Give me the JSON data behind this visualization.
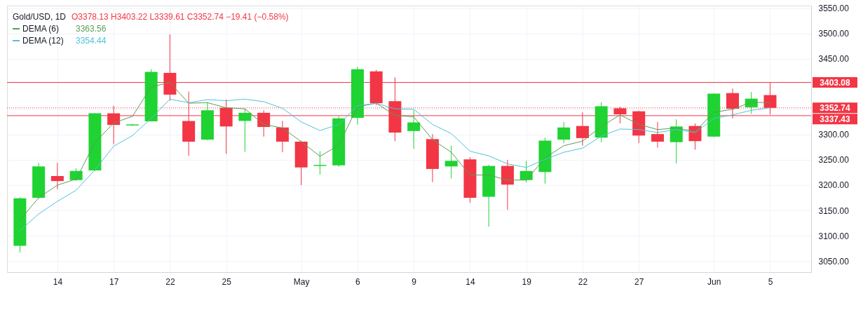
{
  "chart_data": {
    "type": "candlestick",
    "title": "Gold/USD, 1D",
    "subtitle": "O3378.13  H3403.22  L3339.61  C3352.74  −19.41 (−0.58%)",
    "categories": [
      null,
      null,
      "14",
      null,
      null,
      "17",
      null,
      null,
      "22",
      null,
      null,
      "25",
      null,
      null,
      null,
      "May",
      null,
      null,
      "6",
      null,
      null,
      "9",
      null,
      null,
      "14",
      null,
      null,
      "19",
      null,
      null,
      "22",
      null,
      null,
      "27",
      null,
      null,
      null,
      "Jun",
      null,
      null,
      "5"
    ],
    "ohlc": [
      [
        3080,
        3176,
        3067,
        3174
      ],
      [
        3175,
        3244,
        3173,
        3237
      ],
      [
        3218,
        3244,
        3192,
        3208
      ],
      [
        3210,
        3233,
        3208,
        3228
      ],
      [
        3229,
        3342,
        3228,
        3342
      ],
      [
        3342,
        3357,
        3281,
        3319
      ],
      [
        3318,
        3321,
        3317,
        3320
      ],
      [
        3326,
        3429,
        3326,
        3424
      ],
      [
        3422,
        3498,
        3367,
        3379
      ],
      [
        3327,
        3385,
        3258,
        3286
      ],
      [
        3290,
        3364,
        3289,
        3348
      ],
      [
        3353,
        3369,
        3262,
        3316
      ],
      [
        3327,
        3351,
        3266,
        3343
      ],
      [
        3343,
        3348,
        3296,
        3315
      ],
      [
        3314,
        3327,
        3265,
        3286
      ],
      [
        3286,
        3288,
        3200,
        3235
      ],
      [
        3238,
        3267,
        3221,
        3240
      ],
      [
        3239,
        3336,
        3236,
        3332
      ],
      [
        3333,
        3434,
        3320,
        3429
      ],
      [
        3425,
        3428,
        3358,
        3362
      ],
      [
        3366,
        3413,
        3287,
        3304
      ],
      [
        3307,
        3348,
        3272,
        3324
      ],
      [
        3291,
        3301,
        3206,
        3232
      ],
      [
        3237,
        3278,
        3213,
        3248
      ],
      [
        3251,
        3255,
        3165,
        3175
      ],
      [
        3177,
        3240,
        3118,
        3238
      ],
      [
        3238,
        3250,
        3151,
        3201
      ],
      [
        3210,
        3248,
        3205,
        3228
      ],
      [
        3226,
        3294,
        3203,
        3288
      ],
      [
        3290,
        3325,
        3283,
        3314
      ],
      [
        3317,
        3344,
        3278,
        3293
      ],
      [
        3294,
        3364,
        3285,
        3356
      ],
      [
        3352,
        3355,
        3322,
        3340
      ],
      [
        3346,
        3347,
        3283,
        3298
      ],
      [
        3301,
        3325,
        3274,
        3286
      ],
      [
        3285,
        3330,
        3243,
        3316
      ],
      [
        3317,
        3322,
        3270,
        3287
      ],
      [
        3296,
        3381,
        3295,
        3381
      ],
      [
        3382,
        3391,
        3332,
        3351
      ],
      [
        3354,
        3384,
        3341,
        3371
      ],
      [
        3378.13,
        3403.22,
        3339.61,
        3352.74
      ]
    ],
    "colors": [
      "#1ed332",
      "#1ed332",
      "#f23645",
      "#1ed332",
      "#1ed332",
      "#f23645",
      "#1ed332",
      "#1ed332",
      "#f23645",
      "#f23645",
      "#1ed332",
      "#f23645",
      "#1ed332",
      "#f23645",
      "#f23645",
      "#f23645",
      "#1ed332",
      "#1ed332",
      "#1ed332",
      "#f23645",
      "#f23645",
      "#1ed332",
      "#f23645",
      "#1ed332",
      "#f23645",
      "#1ed332",
      "#f23645",
      "#1ed332",
      "#1ed332",
      "#1ed332",
      "#f23645",
      "#1ed332",
      "#f23645",
      "#f23645",
      "#f23645",
      "#1ed332",
      "#f23645",
      "#1ed332",
      "#f23645",
      "#1ed332",
      "#f23645"
    ],
    "series": [
      {
        "name": "DEMA (6)",
        "type": "line",
        "color": "#5d9c59",
        "values": [
          3131,
          3175,
          3200,
          3212,
          3284,
          3323,
          3336,
          3394,
          3403,
          3362,
          3363,
          3353,
          3351,
          3320,
          3313,
          3286,
          3257,
          3279,
          3355,
          3362,
          3338,
          3335,
          3290,
          3265,
          3220,
          3220,
          3210,
          3210,
          3254,
          3278,
          3287,
          3316,
          3339,
          3320,
          3310,
          3313,
          3306,
          3344,
          3350,
          3364,
          3363
        ]
      },
      {
        "name": "DEMA (12)",
        "type": "line",
        "color": "#4fc3d9",
        "values": [
          3110,
          3143,
          3168,
          3190,
          3230,
          3277,
          3298,
          3332,
          3370,
          3363,
          3369,
          3367,
          3370,
          3365,
          3352,
          3325,
          3308,
          3320,
          3357,
          3362,
          3351,
          3350,
          3320,
          3302,
          3267,
          3258,
          3242,
          3235,
          3251,
          3265,
          3273,
          3297,
          3311,
          3310,
          3304,
          3310,
          3304,
          3332,
          3339,
          3348,
          3353
        ]
      }
    ],
    "annotations": [
      "3363.56",
      "3354.44"
    ],
    "ref_lines": [
      {
        "axis": "y",
        "value": 3403.08,
        "label": "3403.08",
        "color": "#f23645",
        "line_style": "solid"
      },
      {
        "axis": "y",
        "value": 3352.74,
        "label": "3352.74",
        "color": "#f23645",
        "line_style": "dotted"
      },
      {
        "axis": "y",
        "value": 3337.43,
        "label": "3337.43",
        "color": "#f23645",
        "line_style": "solid"
      }
    ],
    "ylim": [
      3028,
      3555
    ],
    "yticks": [
      {
        "value": 3050,
        "label": "3050.00"
      },
      {
        "value": 3100,
        "label": "3100.00"
      },
      {
        "value": 3150,
        "label": "3150.00"
      },
      {
        "value": 3200,
        "label": "3200.00"
      },
      {
        "value": 3250,
        "label": "3250.00"
      },
      {
        "value": 3300,
        "label": "3300.00"
      },
      {
        "value": 3350,
        "label": null
      },
      {
        "value": 3450,
        "label": "3450.00"
      },
      {
        "value": 3500,
        "label": "3500.00"
      },
      {
        "value": 3550,
        "label": "3550.00"
      }
    ],
    "grid": true,
    "legend": "top left",
    "marker": "none",
    "line_style": "solid"
  }
}
